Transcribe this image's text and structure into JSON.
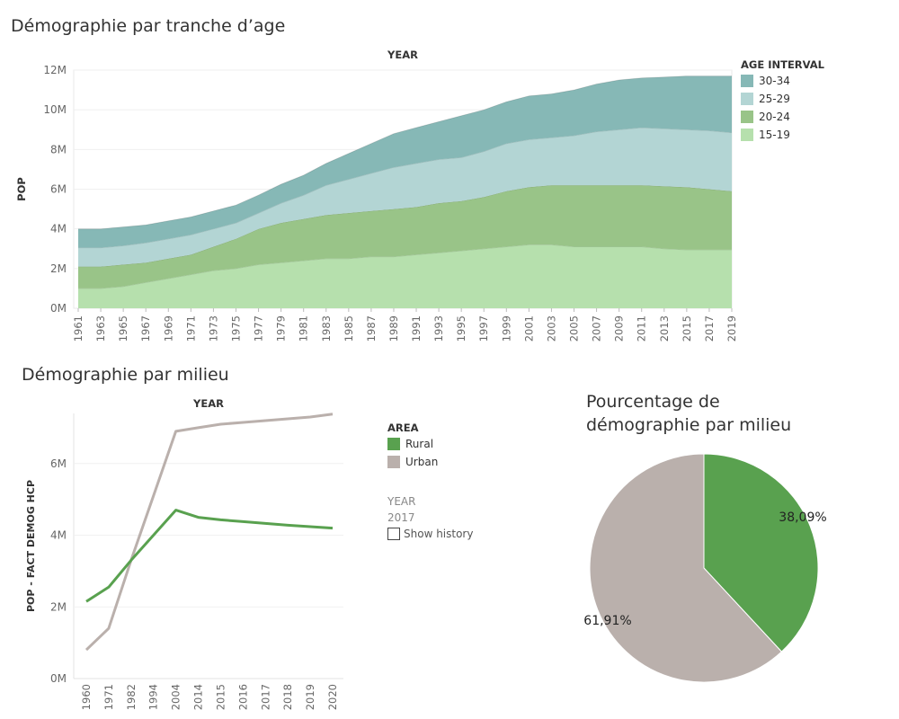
{
  "titles": {
    "age_chart": "Démographie par tranche d’age",
    "area_line_chart": "Démographie par milieu",
    "pie_chart": [
      "Pourcentage de",
      "démographie par milieu"
    ]
  },
  "age_legend": {
    "title": "AGE INTERVAL",
    "items": [
      {
        "label": "30-34",
        "color": "#86b8b6"
      },
      {
        "label": "25-29",
        "color": "#b3d5d4"
      },
      {
        "label": "20-24",
        "color": "#99c488"
      },
      {
        "label": "15-19",
        "color": "#b6e0ad"
      }
    ]
  },
  "area_legend": {
    "title": "AREA",
    "items": [
      {
        "label": "Rural",
        "color": "#59a14f"
      },
      {
        "label": "Urban",
        "color": "#bab0ac"
      }
    ]
  },
  "year_filter": {
    "label": "YEAR",
    "value": "2017",
    "show_history_label": "Show history",
    "show_history_checked": false
  },
  "chart_data": [
    {
      "type": "area",
      "stacked": true,
      "title": "",
      "xlabel": "YEAR",
      "ylabel": "POP",
      "x": [
        "1961",
        "1963",
        "1965",
        "1967",
        "1969",
        "1971",
        "1973",
        "1975",
        "1977",
        "1979",
        "1981",
        "1983",
        "1985",
        "1987",
        "1989",
        "1991",
        "1993",
        "1995",
        "1997",
        "1999",
        "2001",
        "2003",
        "2005",
        "2007",
        "2009",
        "2011",
        "2013",
        "2015",
        "2017",
        "2019"
      ],
      "ylim": [
        0,
        12000000
      ],
      "yticks": [
        0,
        2000000,
        4000000,
        6000000,
        8000000,
        10000000,
        12000000
      ],
      "ytick_labels": [
        "0M",
        "2M",
        "4M",
        "6M",
        "8M",
        "10M",
        "12M"
      ],
      "legend": "right",
      "series": [
        {
          "name": "15-19",
          "color": "#b6e0ad",
          "values": [
            1000000,
            1000000,
            1100000,
            1300000,
            1500000,
            1700000,
            1900000,
            2000000,
            2200000,
            2300000,
            2400000,
            2500000,
            2500000,
            2600000,
            2600000,
            2700000,
            2800000,
            2900000,
            3000000,
            3100000,
            3200000,
            3200000,
            3100000,
            3100000,
            3100000,
            3100000,
            3000000,
            2950000,
            2950000,
            2950000
          ]
        },
        {
          "name": "20-24",
          "color": "#99c488",
          "values": [
            1100000,
            1100000,
            1100000,
            1000000,
            1000000,
            1000000,
            1200000,
            1500000,
            1800000,
            2000000,
            2100000,
            2200000,
            2300000,
            2300000,
            2400000,
            2400000,
            2500000,
            2500000,
            2600000,
            2800000,
            2900000,
            3000000,
            3100000,
            3100000,
            3100000,
            3100000,
            3150000,
            3150000,
            3050000,
            2950000
          ]
        },
        {
          "name": "25-29",
          "color": "#b3d5d4",
          "values": [
            950000,
            950000,
            950000,
            1000000,
            1000000,
            1000000,
            900000,
            800000,
            800000,
            1000000,
            1200000,
            1500000,
            1700000,
            1900000,
            2100000,
            2200000,
            2200000,
            2200000,
            2300000,
            2400000,
            2400000,
            2400000,
            2500000,
            2700000,
            2800000,
            2900000,
            2900000,
            2900000,
            2950000,
            2950000
          ]
        },
        {
          "name": "30-34",
          "color": "#86b8b6",
          "values": [
            950000,
            950000,
            950000,
            900000,
            900000,
            900000,
            900000,
            900000,
            900000,
            950000,
            1000000,
            1100000,
            1300000,
            1500000,
            1700000,
            1800000,
            1900000,
            2100000,
            2100000,
            2100000,
            2200000,
            2200000,
            2300000,
            2400000,
            2500000,
            2500000,
            2600000,
            2700000,
            2750000,
            2850000
          ]
        }
      ]
    },
    {
      "type": "line",
      "title": "",
      "xlabel": "YEAR",
      "ylabel": "POP - FACT DEMOG HCP",
      "x": [
        "1960",
        "1971",
        "1982",
        "1994",
        "2004",
        "2014",
        "2015",
        "2016",
        "2017",
        "2018",
        "2019",
        "2020"
      ],
      "ylim": [
        0,
        7400000
      ],
      "yticks": [
        0,
        2000000,
        4000000,
        6000000
      ],
      "ytick_labels": [
        "0M",
        "2M",
        "4M",
        "6M"
      ],
      "legend": "right",
      "series": [
        {
          "name": "Rural",
          "color": "#59a14f",
          "values": [
            2150000,
            2550000,
            3300000,
            4000000,
            4700000,
            4500000,
            4430000,
            4380000,
            4330000,
            4280000,
            4240000,
            4200000
          ]
        },
        {
          "name": "Urban",
          "color": "#bab0ac",
          "values": [
            800000,
            1400000,
            3300000,
            5100000,
            6900000,
            7000000,
            7100000,
            7150000,
            7200000,
            7250000,
            7300000,
            7380000
          ]
        }
      ]
    },
    {
      "type": "pie",
      "title": "Pourcentage de démographie par milieu",
      "slices": [
        {
          "label": "Rural",
          "value": 38.09,
          "display": "38,09%",
          "color": "#59a14f"
        },
        {
          "label": "Urban",
          "value": 61.91,
          "display": "61,91%",
          "color": "#bab0ac"
        }
      ]
    }
  ]
}
